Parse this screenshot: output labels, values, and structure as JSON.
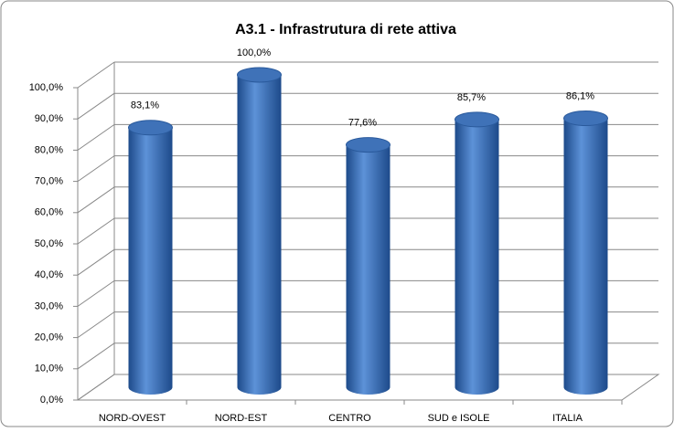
{
  "chart_data": {
    "type": "bar3d",
    "title": "A3.1 - Infrastrutura di rete attiva",
    "categories": [
      "NORD-OVEST",
      "NORD-EST",
      "CENTRO",
      "SUD e ISOLE",
      "ITALIA"
    ],
    "values": [
      83.1,
      100,
      77.6,
      85.7,
      86.1
    ],
    "value_labels": [
      "83,1%",
      "100,0%",
      "77,6%",
      "85,7%",
      "86,1%"
    ],
    "color": "#3f72b8",
    "ylim": [
      0,
      100
    ],
    "yticks": [
      {
        "value": 0,
        "label": "0,0%"
      },
      {
        "value": 10,
        "label": "10,0%"
      },
      {
        "value": 20,
        "label": "20,0%"
      },
      {
        "value": 30,
        "label": "30,0%"
      },
      {
        "value": 40,
        "label": "40,0%"
      },
      {
        "value": 50,
        "label": "50,0%"
      },
      {
        "value": 60,
        "label": "60,0%"
      },
      {
        "value": 70,
        "label": "70,0%"
      },
      {
        "value": 80,
        "label": "80,0%"
      },
      {
        "value": 90,
        "label": "90,0%"
      },
      {
        "value": 100,
        "label": "100,0%"
      }
    ],
    "grid": true
  }
}
